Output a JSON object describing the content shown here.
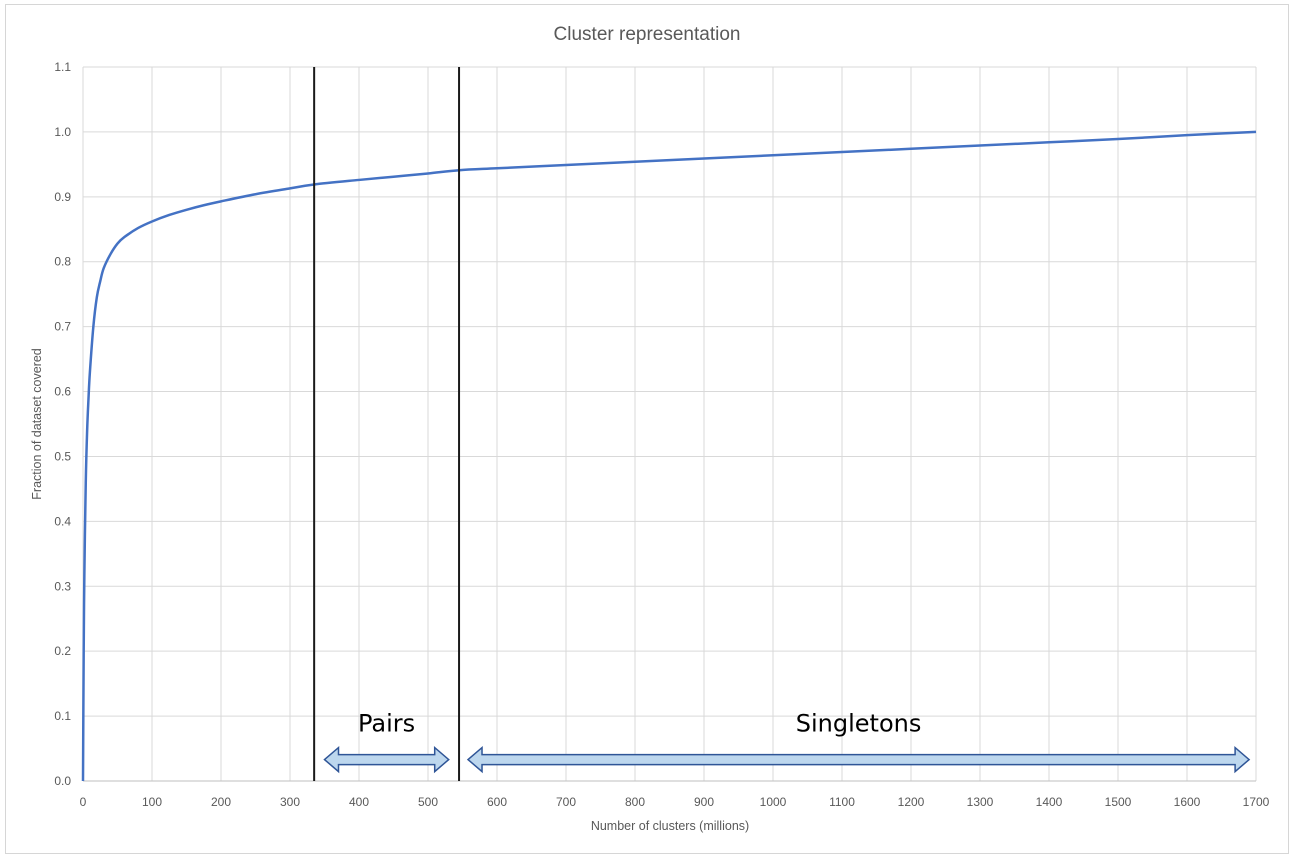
{
  "chart_data": {
    "type": "line",
    "title": "Cluster representation",
    "xlabel": "Number of clusters (millions)",
    "ylabel": "Fraction of dataset covered",
    "xlim": [
      0,
      1700
    ],
    "ylim": [
      0,
      1.1
    ],
    "x_ticks": [
      "0",
      "100",
      "200",
      "300",
      "400",
      "500",
      "600",
      "700",
      "800",
      "900",
      "1000",
      "1100",
      "1200",
      "1300",
      "1400",
      "1500",
      "1600",
      "1700"
    ],
    "y_ticks": [
      "0.0",
      "0.1",
      "0.2",
      "0.3",
      "0.4",
      "0.5",
      "0.6",
      "0.7",
      "0.8",
      "0.9",
      "1.0",
      "1.1"
    ],
    "grid": true,
    "legend": "none",
    "series": [
      {
        "color": "#4472C4",
        "x": [
          0,
          1,
          2,
          4,
          6,
          8,
          10,
          15,
          20,
          25,
          30,
          40,
          50,
          60,
          80,
          100,
          125,
          150,
          175,
          200,
          250,
          300,
          335,
          400,
          450,
          500,
          545,
          600,
          700,
          800,
          900,
          1000,
          1100,
          1200,
          1300,
          1400,
          1500,
          1600,
          1700
        ],
        "y": [
          0,
          0.2,
          0.32,
          0.46,
          0.54,
          0.59,
          0.63,
          0.7,
          0.745,
          0.77,
          0.79,
          0.812,
          0.828,
          0.838,
          0.852,
          0.862,
          0.872,
          0.88,
          0.887,
          0.893,
          0.904,
          0.913,
          0.919,
          0.926,
          0.931,
          0.936,
          0.941,
          0.944,
          0.949,
          0.954,
          0.959,
          0.964,
          0.969,
          0.974,
          0.979,
          0.984,
          0.989,
          0.995,
          1.0
        ]
      }
    ],
    "vertical_lines": [
      335,
      545
    ],
    "annotations": [
      {
        "label": "Pairs",
        "x_start": 350,
        "x_end": 530,
        "y": 0.033
      },
      {
        "label": "Singletons",
        "x_start": 558,
        "x_end": 1690,
        "y": 0.033
      }
    ]
  }
}
